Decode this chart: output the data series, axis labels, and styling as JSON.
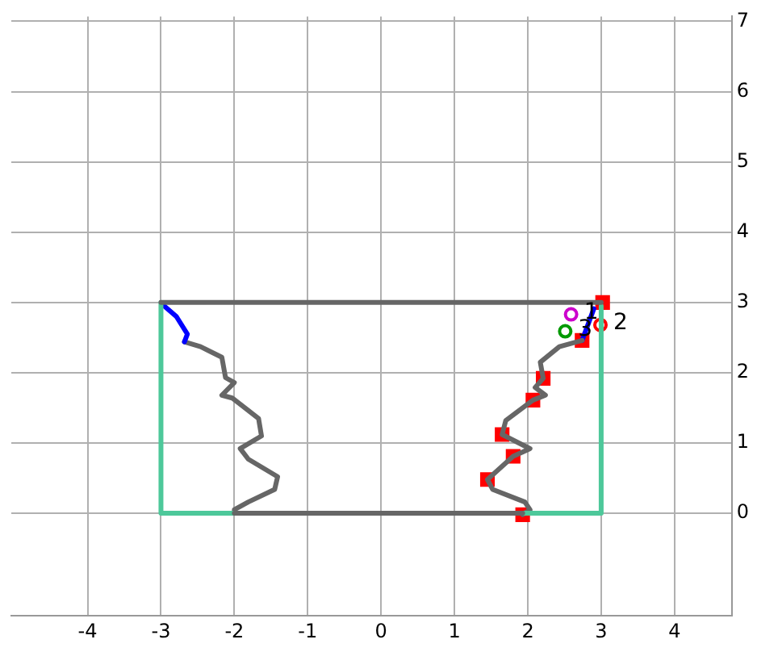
{
  "chart_data": {
    "type": "line",
    "xlim": [
      -5.04,
      4.78
    ],
    "ylim": [
      -1.46,
      7.07
    ],
    "xticks": [
      -4,
      -3,
      -2,
      -1,
      0,
      1,
      2,
      3,
      4
    ],
    "yticks": [
      0,
      1,
      2,
      3,
      4,
      5,
      6,
      7
    ],
    "grid": true,
    "legend": false,
    "line_style": "solid",
    "series": [
      {
        "color": "#666666",
        "x": [
          -3,
          3
        ],
        "values": [
          3,
          3
        ]
      },
      {
        "type": "line",
        "color": "#666666",
        "x": [
          -2,
          -1.5,
          1.5,
          1.93
        ],
        "values": [
          0,
          0,
          0,
          0
        ]
      },
      {
        "type": "line",
        "color": "#4dc89a",
        "x": [
          -2,
          -3,
          -3
        ],
        "values": [
          0,
          0,
          3
        ]
      },
      {
        "type": "line",
        "color": "#4dc89a",
        "x": [
          1.93,
          3,
          3
        ],
        "values": [
          0,
          0,
          2.95
        ]
      },
      {
        "type": "line",
        "color": "#0000ff",
        "x": [
          -2.99,
          -2.79,
          -2.64,
          -2.68
        ],
        "values": [
          2.98,
          2.8,
          2.55,
          2.44
        ]
      },
      {
        "type": "line",
        "color": "#666666",
        "x": [
          -2.68,
          -2.46,
          -2.17,
          -2.12,
          -2.0,
          -2.17,
          -2.03,
          -1.67,
          -1.63,
          -1.92,
          -1.81,
          -1.41,
          -1.45,
          -1.81,
          -2.0,
          -2.0
        ],
        "values": [
          2.44,
          2.37,
          2.22,
          1.93,
          1.86,
          1.68,
          1.64,
          1.35,
          1.1,
          0.92,
          0.77,
          0.52,
          0.34,
          0.16,
          0.05,
          0
        ]
      },
      {
        "type": "line",
        "color": "#666666",
        "x": [
          2.74,
          2.43,
          2.17,
          2.21,
          2.1,
          2.24,
          2.07,
          1.7,
          1.65,
          2.03,
          1.8,
          1.45,
          1.52,
          1.96,
          2.03,
          1.93
        ],
        "values": [
          2.46,
          2.37,
          2.15,
          1.92,
          1.79,
          1.68,
          1.61,
          1.32,
          1.12,
          0.92,
          0.81,
          0.48,
          0.34,
          0.16,
          0.05,
          -0.02
        ]
      },
      {
        "type": "line",
        "color": "#0000ff",
        "x": [
          2.74,
          2.9
        ],
        "values": [
          2.46,
          2.91
        ]
      },
      {
        "type": "scatter",
        "marker": "square",
        "color": "#ff0000",
        "x": [
          3.02,
          2.74,
          2.21,
          2.07,
          1.65,
          1.8,
          1.45,
          1.93
        ],
        "values": [
          3.0,
          2.46,
          1.92,
          1.61,
          1.12,
          0.81,
          0.48,
          -0.02
        ]
      },
      {
        "type": "scatter",
        "marker": "circle",
        "color": "#cc00cc",
        "x": [
          2.59
        ],
        "values": [
          2.83
        ]
      },
      {
        "type": "scatter",
        "marker": "circle",
        "color": "#009900",
        "x": [
          2.51
        ],
        "values": [
          2.59
        ]
      },
      {
        "type": "scatter",
        "marker": "circle",
        "color": "#ff0000",
        "x": [
          2.99
        ],
        "values": [
          2.68
        ]
      }
    ],
    "annotations": [
      {
        "text": "1",
        "x": 2.59,
        "y": 2.83
      },
      {
        "text": "3",
        "x": 2.51,
        "y": 2.59
      },
      {
        "text": "2",
        "x": 2.99,
        "y": 2.68
      }
    ]
  }
}
